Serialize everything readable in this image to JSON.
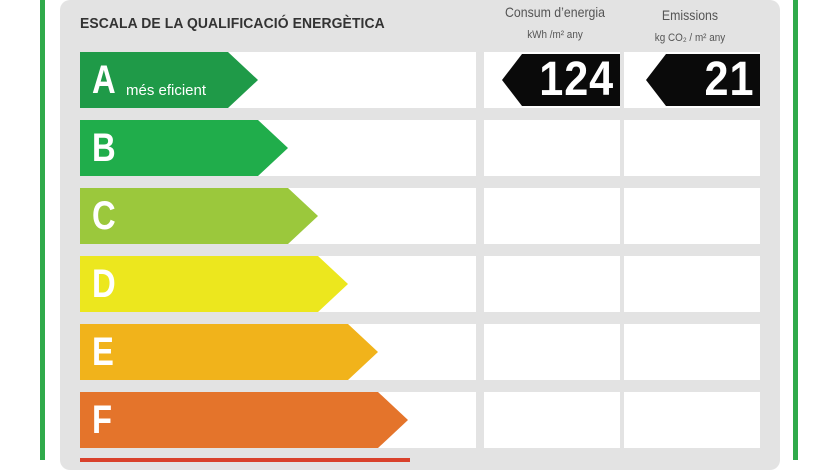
{
  "title": "ESCALA DE LA QUALIFICACIÓ ENERGÈTICA",
  "columns": {
    "consum": {
      "label": "Consum d’energia",
      "unit": "kWh /m² any"
    },
    "emissions": {
      "label": "Emissions",
      "unit": "kg CO₂ / m² any"
    }
  },
  "ratings": [
    {
      "letter": "A",
      "sublabel": "més eficient",
      "color": "#1f9a48"
    },
    {
      "letter": "B",
      "sublabel": "",
      "color": "#20ad4b"
    },
    {
      "letter": "C",
      "sublabel": "",
      "color": "#9bc83c"
    },
    {
      "letter": "D",
      "sublabel": "",
      "color": "#ece71e"
    },
    {
      "letter": "E",
      "sublabel": "",
      "color": "#f1b31b"
    },
    {
      "letter": "F",
      "sublabel": "",
      "color": "#e4742b"
    }
  ],
  "values": {
    "consum": "124",
    "emissions": "21"
  }
}
